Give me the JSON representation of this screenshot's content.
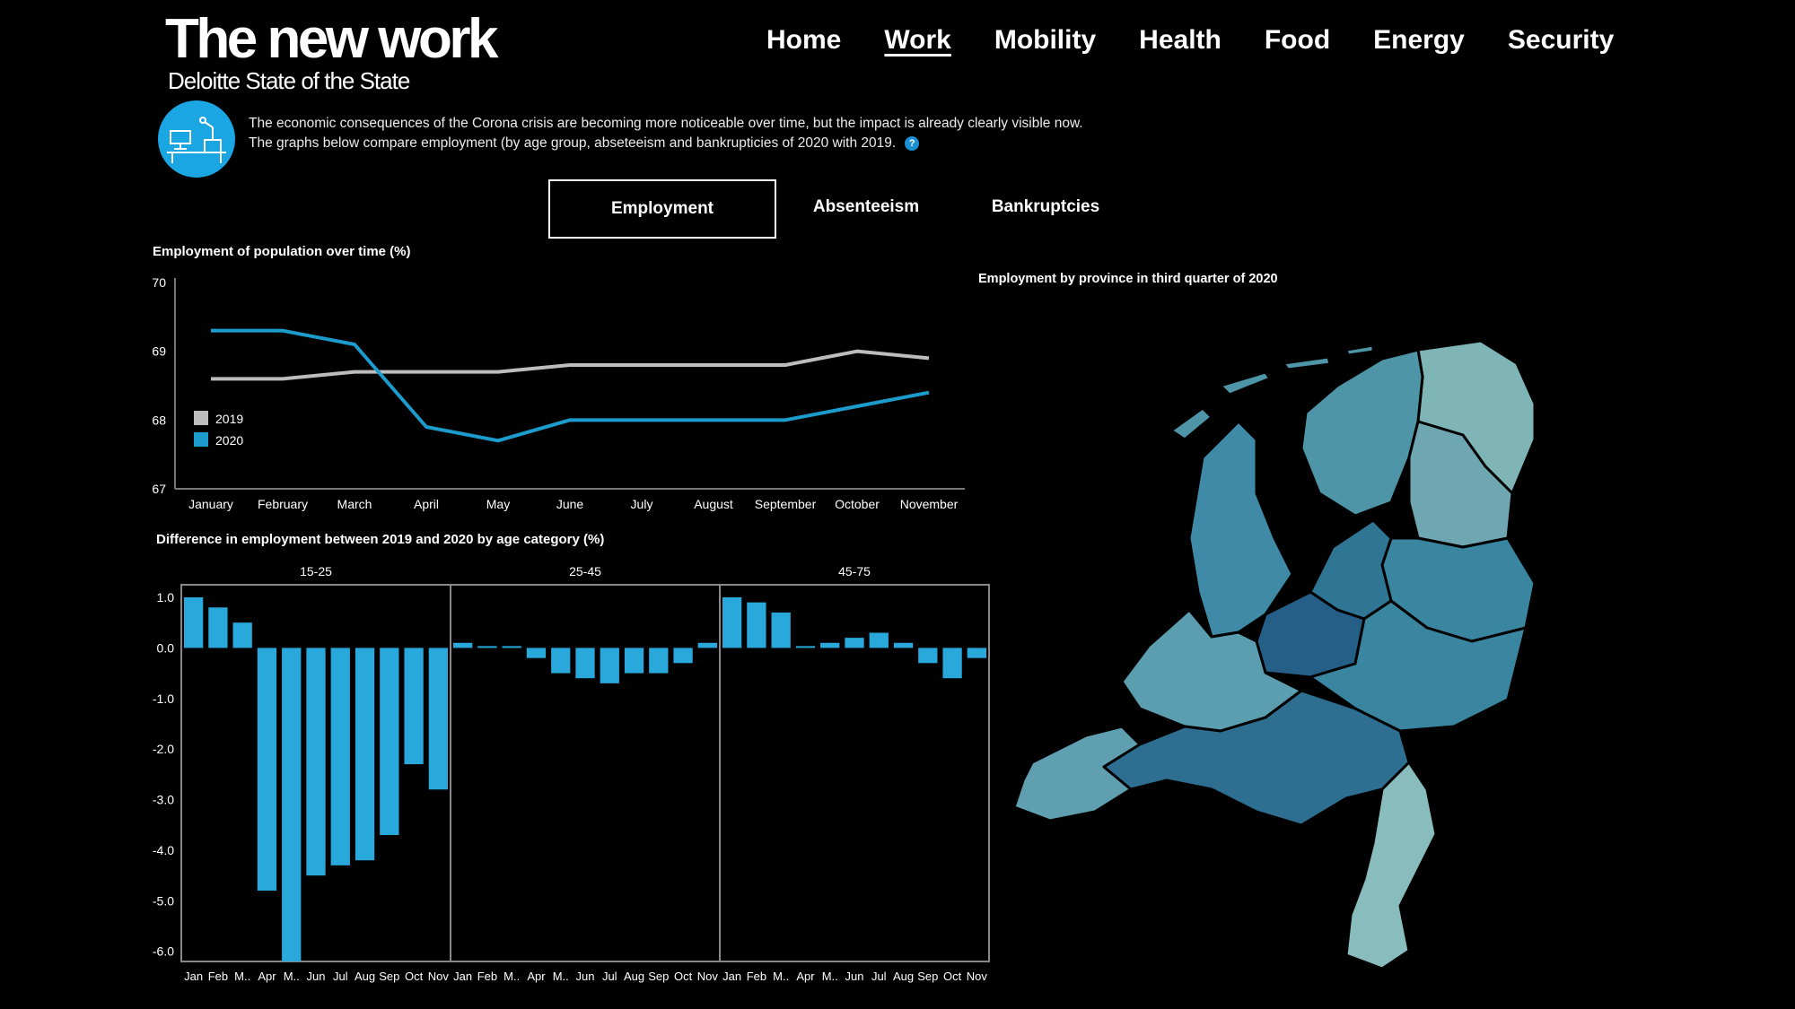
{
  "header": {
    "title": "The new work",
    "subtitle": "Deloitte State of the State"
  },
  "nav": {
    "items": [
      "Home",
      "Work",
      "Mobility",
      "Health",
      "Food",
      "Energy",
      "Security"
    ],
    "active": "Work"
  },
  "intro": {
    "line1": "The economic consequences of the Corona crisis are becoming more noticeable over time, but the impact is already clearly visible now.",
    "line2": "The graphs below compare employment (by age group, abseteeism and bankrupticies of 2020 with 2019.",
    "info_icon": "?"
  },
  "tabs": [
    "Employment",
    "Absenteeism",
    "Bankruptcies"
  ],
  "colors": {
    "series_2019": "#bdbdbd",
    "series_2020": "#1b9ccc",
    "bars": "#29a8dc",
    "icon_circle": "#1aa6e2"
  },
  "map": {
    "title": "Employment by province in third quarter of 2020"
  },
  "chart_data": [
    {
      "type": "line",
      "title": "Employment of population over time (%)",
      "x": [
        "January",
        "February",
        "March",
        "April",
        "May",
        "June",
        "July",
        "August",
        "September",
        "October",
        "November"
      ],
      "yticks": [
        "70",
        "69",
        "68",
        "67"
      ],
      "ylim": [
        67,
        70
      ],
      "series": [
        {
          "name": "2019",
          "values": [
            68.6,
            68.6,
            68.7,
            68.7,
            68.7,
            68.8,
            68.8,
            68.8,
            68.8,
            69.0,
            68.9
          ]
        },
        {
          "name": "2020",
          "values": [
            69.3,
            69.3,
            69.1,
            67.9,
            67.7,
            68.0,
            68.0,
            68.0,
            68.0,
            68.2,
            68.4
          ]
        }
      ],
      "legend": "left"
    },
    {
      "type": "bar",
      "title": "Difference in employment between 2019 and 2020 by age category (%)",
      "categories": [
        "Jan",
        "Feb",
        "M..",
        "Apr",
        "M..",
        "Jun",
        "Jul",
        "Aug",
        "Sep",
        "Oct",
        "Nov"
      ],
      "yticks": [
        "1.0",
        "0.0",
        "-1.0",
        "-2.0",
        "-3.0",
        "-4.0",
        "-5.0",
        "-6.0"
      ],
      "ylim": [
        -6.2,
        1.0
      ],
      "panels": [
        {
          "name": "15-25",
          "values": [
            1.0,
            0.8,
            0.5,
            -4.8,
            -6.2,
            -4.5,
            -4.3,
            -4.2,
            -3.7,
            -2.3,
            -2.8
          ]
        },
        {
          "name": "25-45",
          "values": [
            0.1,
            0.0,
            0.0,
            -0.2,
            -0.5,
            -0.6,
            -0.7,
            -0.5,
            -0.5,
            -0.3,
            0.1
          ]
        },
        {
          "name": "45-75",
          "values": [
            1.0,
            0.9,
            0.7,
            0.0,
            0.1,
            0.2,
            0.3,
            0.1,
            -0.3,
            -0.6,
            -0.2
          ]
        }
      ]
    }
  ]
}
